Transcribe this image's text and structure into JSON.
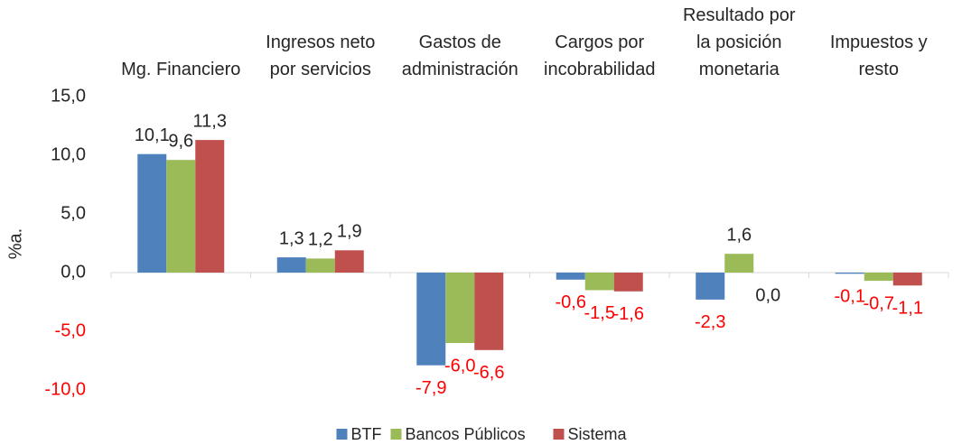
{
  "chart_data": {
    "type": "bar",
    "y_label": "%a.",
    "categories": [
      "Mg. Financiero",
      "Ingresos neto\npor servicios",
      "Gastos de\nadministración",
      "Cargos por\nincobrabilidad",
      "Resultado por\nla posición\nmonetaria",
      "Impuestos y\nresto"
    ],
    "series": [
      {
        "name": "BTF",
        "color": "#4f81bd",
        "values": [
          10.1,
          1.3,
          -7.9,
          -0.6,
          -2.3,
          -0.1
        ],
        "value_labels": [
          "10,1",
          "1,3",
          "-7,9",
          "-0,6",
          "-2,3",
          "-0,1"
        ]
      },
      {
        "name": "Bancos Públicos",
        "color": "#9bbb59",
        "values": [
          9.6,
          1.2,
          -6.0,
          -1.5,
          1.6,
          -0.7
        ],
        "value_labels": [
          "9,6",
          "1,2",
          "-6,0",
          "-1,5",
          "1,6",
          "-0,7"
        ]
      },
      {
        "name": "Sistema",
        "color": "#c0504d",
        "values": [
          11.3,
          1.9,
          -6.6,
          -1.6,
          0.0,
          -1.1
        ],
        "value_labels": [
          "11,3",
          "1,9",
          "-6,6",
          "-1,6",
          "0,0",
          "-1,1"
        ]
      }
    ],
    "ylim": [
      -10,
      15
    ],
    "yticks": [
      {
        "value": -10,
        "label": "-10,0"
      },
      {
        "value": -5,
        "label": "-5,0"
      },
      {
        "value": 0,
        "label": "0,0"
      },
      {
        "value": 5,
        "label": "5,0"
      },
      {
        "value": 10,
        "label": "10,0"
      },
      {
        "value": 15,
        "label": "15,0"
      }
    ],
    "negative_label_color": "#ff0000",
    "legend": "bottom",
    "grid": false
  }
}
